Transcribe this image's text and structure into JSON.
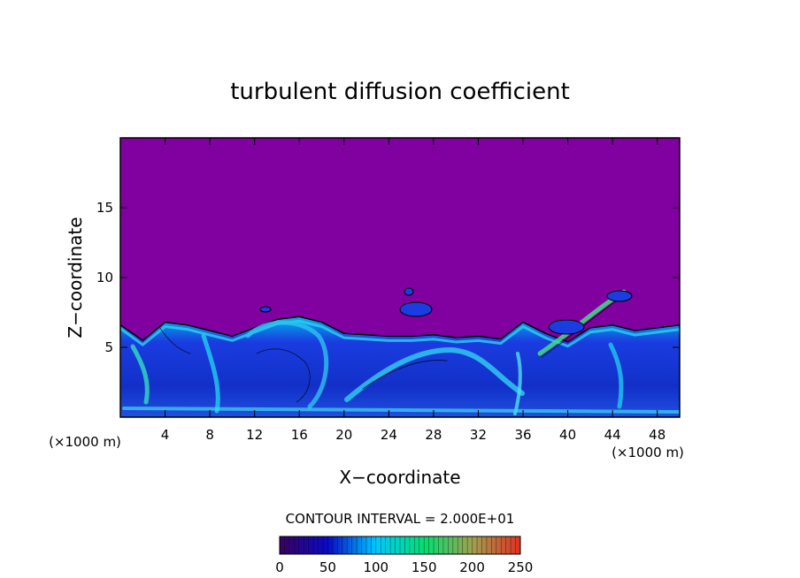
{
  "chart_data": {
    "type": "heatmap",
    "title": "turbulent diffusion coefficient",
    "xlabel": "X−coordinate",
    "ylabel": "Z−coordinate",
    "x_unit_left": "(×1000 m)",
    "x_unit_right": "(×1000 m)",
    "xlim": [
      0,
      50
    ],
    "ylim": [
      0,
      20
    ],
    "xticks": [
      4,
      8,
      12,
      16,
      20,
      24,
      28,
      32,
      36,
      40,
      44,
      48
    ],
    "yticks": [
      5,
      10,
      15
    ],
    "contour_interval_text": "CONTOUR INTERVAL = 2.000E+01",
    "colorbar": {
      "ticks": [
        0,
        50,
        100,
        150,
        200,
        250
      ],
      "range": [
        0,
        250
      ]
    },
    "field": {
      "background_value": 0,
      "background_color": "#8000a0",
      "turbulent_layer_top": [
        [
          0,
          6.6
        ],
        [
          2,
          5.5
        ],
        [
          4,
          6.8
        ],
        [
          6,
          6.6
        ],
        [
          8,
          6.2
        ],
        [
          10,
          5.8
        ],
        [
          12,
          6.4
        ],
        [
          14,
          7.0
        ],
        [
          16,
          7.2
        ],
        [
          18,
          6.8
        ],
        [
          20,
          6.0
        ],
        [
          22,
          5.9
        ],
        [
          24,
          5.8
        ],
        [
          26,
          5.8
        ],
        [
          28,
          5.9
        ],
        [
          30,
          5.7
        ],
        [
          32,
          5.8
        ],
        [
          34,
          5.6
        ],
        [
          36,
          6.8
        ],
        [
          38,
          6.0
        ],
        [
          40,
          5.4
        ],
        [
          42,
          6.4
        ],
        [
          44,
          6.6
        ],
        [
          46,
          6.2
        ],
        [
          48,
          6.4
        ],
        [
          50,
          6.6
        ]
      ]
    }
  }
}
